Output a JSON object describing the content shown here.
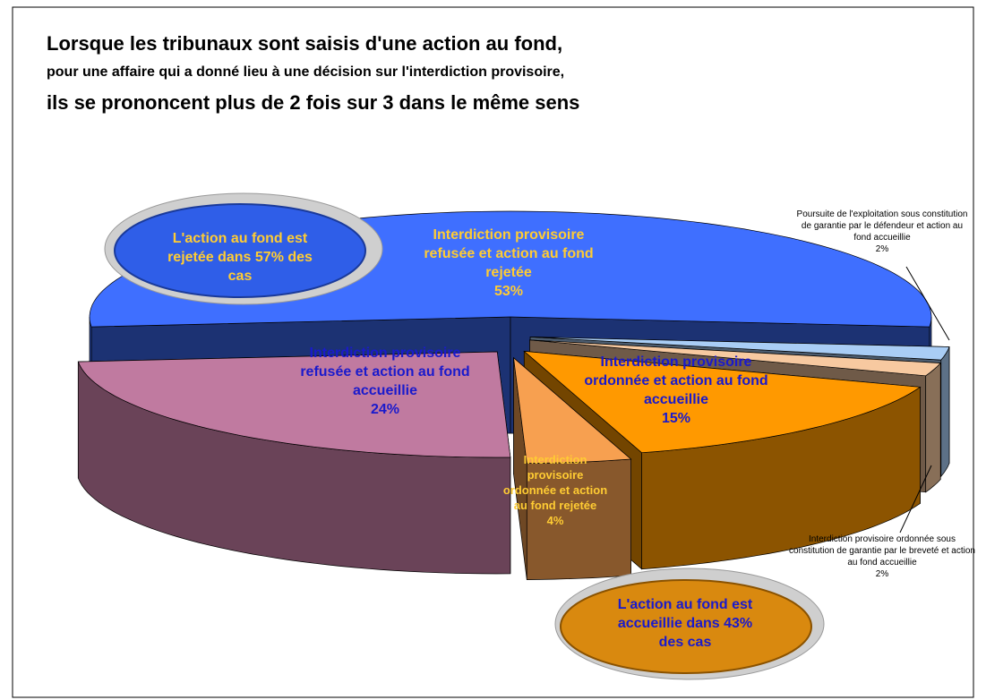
{
  "chart_data": {
    "type": "pie",
    "title": [
      "Lorsque les tribunaux sont saisis d'une action au fond,",
      "pour une affaire qui a donné lieu à une décision sur l'interdiction provisoire,",
      "ils se prononcent plus de 2 fois sur 3 dans le même sens"
    ],
    "categories": [
      "Interdiction provisoire refusée et action au fond rejetée",
      "Poursuite de l'exploitation sous constitution de garantie par le défendeur et action au fond accueillie",
      "Interdiction provisoire ordonnée sous constitution de garantie par le breveté et action au fond accueillie",
      "Interdiction provisoire ordonnée et action au fond accueillie",
      "Interdiction provisoire ordonnée et action au fond rejetée",
      "Interdiction provisoire refusée et action au fond accueillie"
    ],
    "values": [
      53,
      2,
      2,
      15,
      4,
      24
    ],
    "value_labels": [
      "53%",
      "2%",
      "2%",
      "15%",
      "4%",
      "24%"
    ],
    "colors": [
      "#3f6fff",
      "#a9cdf5",
      "#f7c9a0",
      "#ff9900",
      "#f7a050",
      "#c07aa0"
    ],
    "annotations": [
      "L'action au fond est rejetée dans 57% des cas",
      "L'action au fond est accueillie dans 43% des cas"
    ]
  }
}
